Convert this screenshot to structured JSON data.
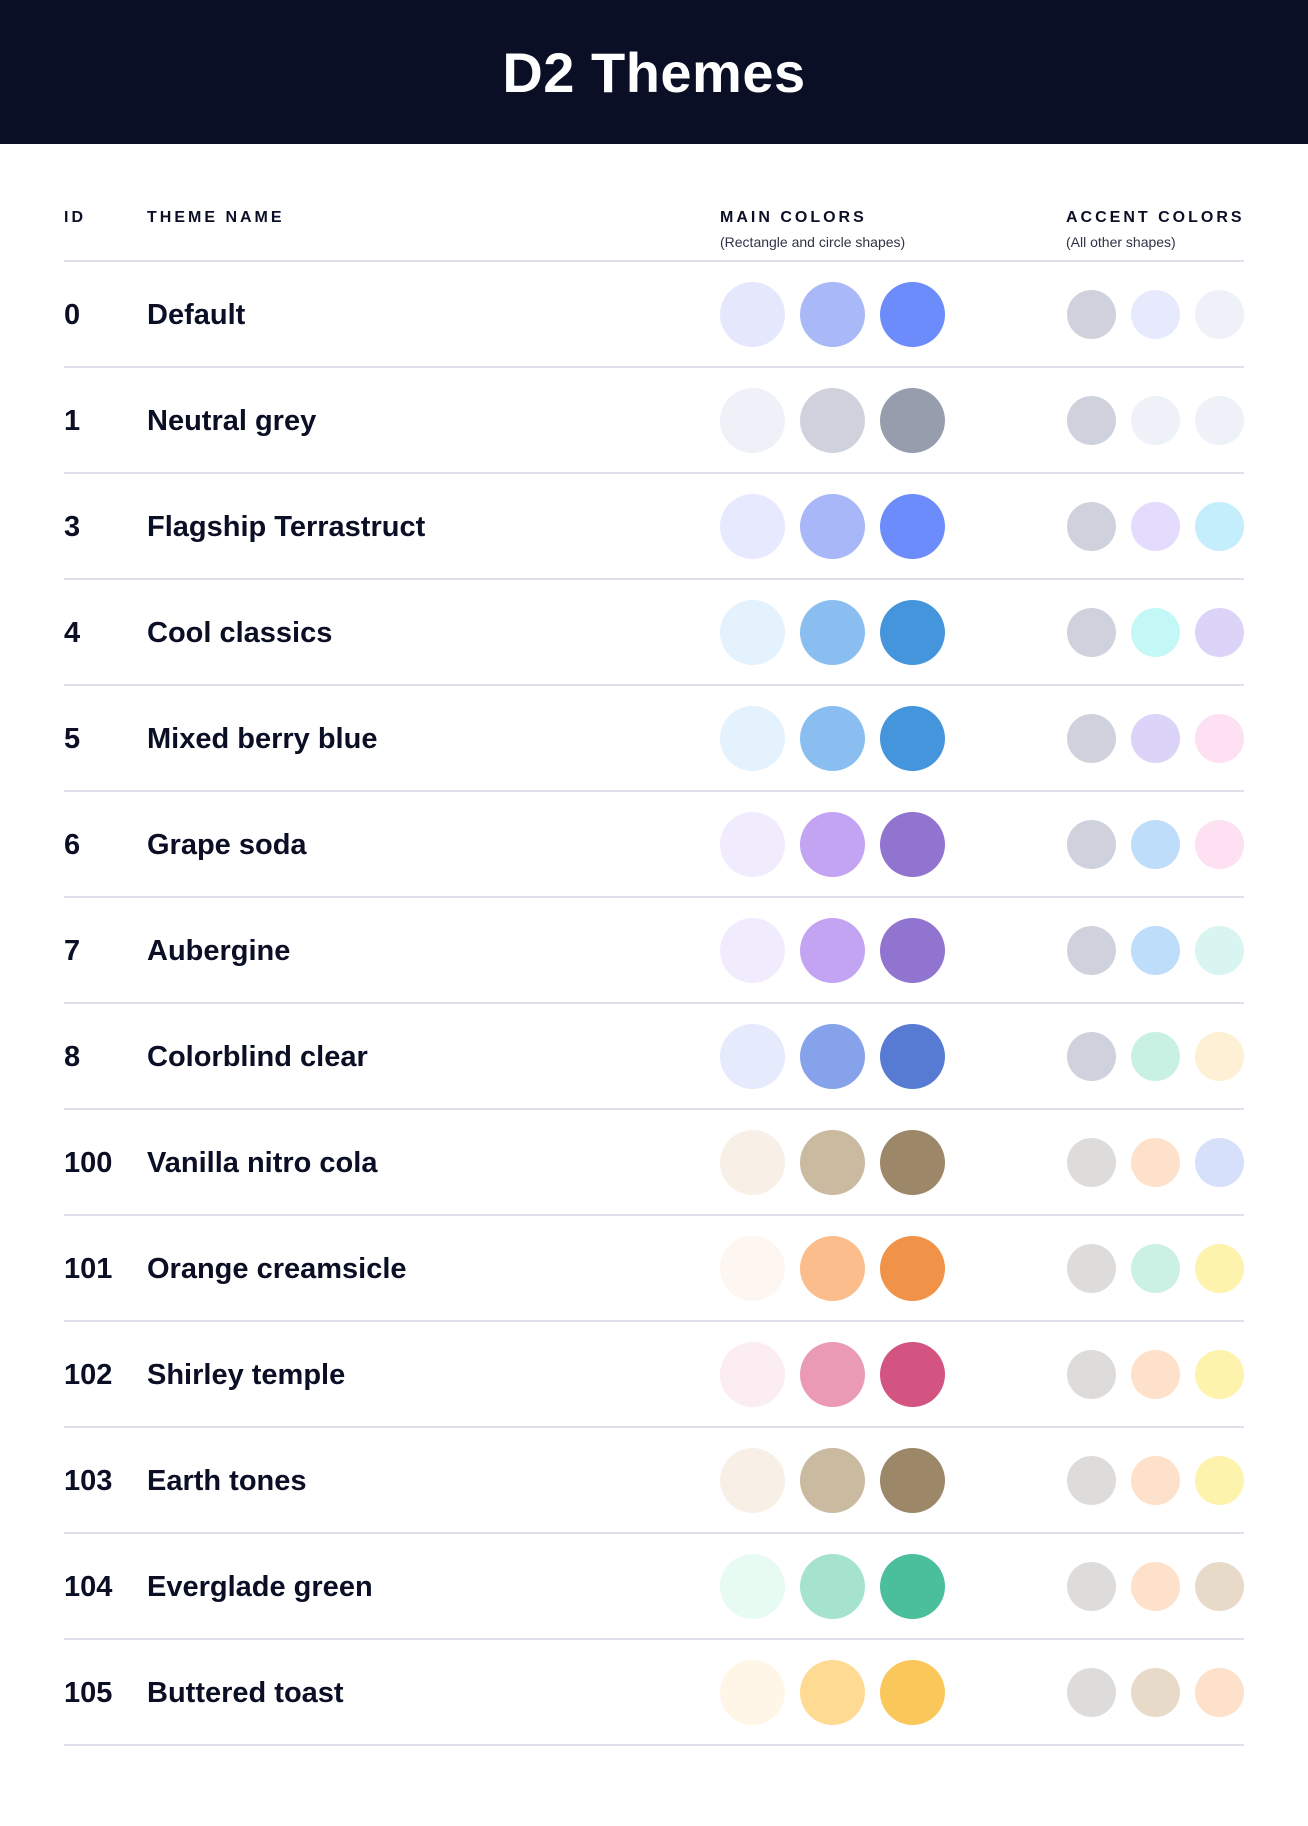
{
  "title": "D2 Themes",
  "columns": {
    "id": "ID",
    "name": "THEME NAME",
    "main": "MAIN COLORS",
    "main_sub": "(Rectangle and circle shapes)",
    "accent": "ACCENT COLORS",
    "accent_sub": "(All other shapes)"
  },
  "themes": [
    {
      "id": "0",
      "name": "Default",
      "main": [
        "#E5E8FC",
        "#A9B8F7",
        "#6D8CFC"
      ],
      "accent": [
        "#CFD2DD",
        "#E7E9FD",
        "#EEF1F8"
      ]
    },
    {
      "id": "1",
      "name": "Neutral grey",
      "main": [
        "#EEF1F8",
        "#CFD2DD",
        "#969DAD"
      ],
      "accent": [
        "#CFD2DD",
        "#EEF1F8",
        "#EEF1F8"
      ]
    },
    {
      "id": "3",
      "name": "Flagship Terrastruct",
      "main": [
        "#E7EAFF",
        "#A8B7F7",
        "#6D8CFC"
      ],
      "accent": [
        "#CFD2DD",
        "#E4DCFC",
        "#C4EEFC"
      ]
    },
    {
      "id": "4",
      "name": "Cool classics",
      "main": [
        "#E3F2FD",
        "#8ABEF1",
        "#4595DC"
      ],
      "accent": [
        "#CFD2DD",
        "#C3F8F7",
        "#DCD3F9"
      ]
    },
    {
      "id": "5",
      "name": "Mixed berry blue",
      "main": [
        "#E3F2FD",
        "#8ABEF1",
        "#4595DC"
      ],
      "accent": [
        "#CFD2DD",
        "#DCD3F9",
        "#FDE0F1"
      ]
    },
    {
      "id": "6",
      "name": "Grape soda",
      "main": [
        "#F1ECFD",
        "#C3A4F2",
        "#9173D0"
      ],
      "accent": [
        "#CFD2DD",
        "#BDDDFB",
        "#FDE0F1"
      ]
    },
    {
      "id": "7",
      "name": "Aubergine",
      "main": [
        "#F1ECFD",
        "#C3A4F2",
        "#9173D0"
      ],
      "accent": [
        "#CFD2DD",
        "#BDDDFB",
        "#D8F5F2"
      ]
    },
    {
      "id": "8",
      "name": "Colorblind clear",
      "main": [
        "#E5EAFD",
        "#86A2EA",
        "#577AD3"
      ],
      "accent": [
        "#CFD2DD",
        "#C8F1E4",
        "#FEF0D5"
      ]
    },
    {
      "id": "100",
      "name": "Vanilla nitro cola",
      "main": [
        "#F8F0E6",
        "#CABA9F",
        "#9C8769"
      ],
      "accent": [
        "#DEDCDA",
        "#FEE1CA",
        "#D6E0FA"
      ]
    },
    {
      "id": "101",
      "name": "Orange creamsicle",
      "main": [
        "#FEF6F1",
        "#FABD8B",
        "#F19249"
      ],
      "accent": [
        "#DEDCDA",
        "#CBF1E4",
        "#FEF3AD"
      ]
    },
    {
      "id": "102",
      "name": "Shirley temple",
      "main": [
        "#FBEDF2",
        "#EA9AB5",
        "#D35381"
      ],
      "accent": [
        "#DEDCDA",
        "#FEE1CA",
        "#FEF3AD"
      ]
    },
    {
      "id": "103",
      "name": "Earth tones",
      "main": [
        "#F8F0E6",
        "#CABA9F",
        "#9C8769"
      ],
      "accent": [
        "#DEDCDA",
        "#FEE1CA",
        "#FEF3AD"
      ]
    },
    {
      "id": "104",
      "name": "Everglade green",
      "main": [
        "#E7FBF3",
        "#A6E3CF",
        "#4BBE9C"
      ],
      "accent": [
        "#DEDCDA",
        "#FEE1CA",
        "#E8DAC9"
      ]
    },
    {
      "id": "105",
      "name": "Buttered toast",
      "main": [
        "#FFF6E7",
        "#FFDA93",
        "#FAC75B"
      ],
      "accent": [
        "#DEDCDA",
        "#E8DAC9",
        "#FEE1CA"
      ]
    }
  ]
}
